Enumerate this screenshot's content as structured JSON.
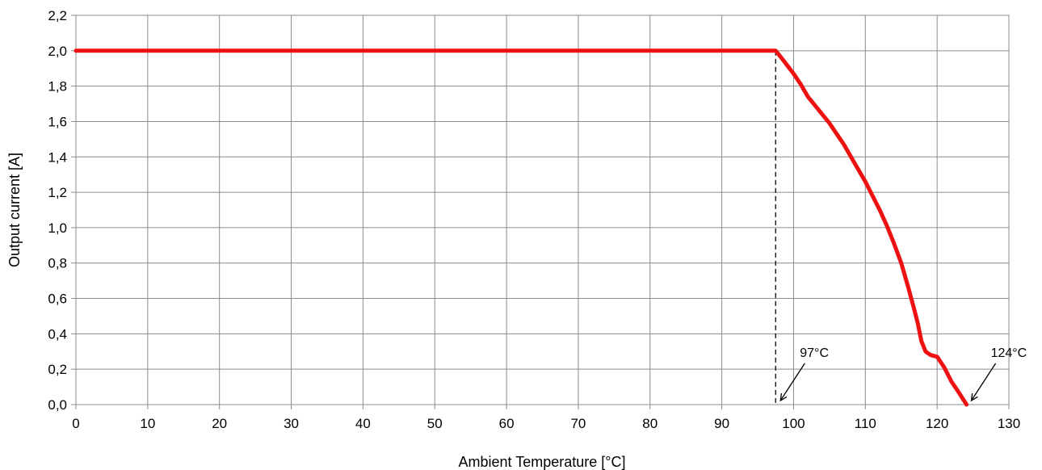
{
  "chart_data": {
    "type": "line",
    "xlabel": "Ambient Temperature  [°C]",
    "ylabel": "Output current [A]",
    "xlim": [
      0,
      130
    ],
    "ylim": [
      0,
      2.2
    ],
    "x_ticks": [
      0,
      10,
      20,
      30,
      40,
      50,
      60,
      70,
      80,
      90,
      100,
      110,
      120,
      130
    ],
    "y_ticks": [
      0,
      0.2,
      0.4,
      0.6,
      0.8,
      1.0,
      1.2,
      1.4,
      1.6,
      1.8,
      2.0,
      2.2
    ],
    "x_tick_labels": [
      "0",
      "10",
      "20",
      "30",
      "40",
      "50",
      "60",
      "70",
      "80",
      "90",
      "100",
      "110",
      "120",
      "130"
    ],
    "y_tick_labels": [
      "0,0",
      "0,2",
      "0,4",
      "0,6",
      "0,8",
      "1,0",
      "1,2",
      "1,4",
      "1,6",
      "1,8",
      "2,0",
      "2,2"
    ],
    "grid": true,
    "legend": "none",
    "series": [
      {
        "color": "#ee1111",
        "x": [
          0,
          97.5,
          98.5,
          100,
          101,
          102,
          103,
          104,
          105,
          106,
          107,
          108,
          109,
          110,
          111,
          112,
          113,
          114,
          115,
          116,
          116.8,
          117.3,
          117.8,
          118.4,
          119.1,
          120,
          121,
          122,
          123,
          124.1
        ],
        "y": [
          2.0,
          2.0,
          1.95,
          1.87,
          1.81,
          1.74,
          1.69,
          1.64,
          1.59,
          1.53,
          1.47,
          1.4,
          1.33,
          1.26,
          1.18,
          1.1,
          1.01,
          0.91,
          0.8,
          0.66,
          0.54,
          0.46,
          0.36,
          0.3,
          0.28,
          0.27,
          0.21,
          0.13,
          0.07,
          0.0
        ]
      }
    ],
    "annotations": [
      {
        "text": "97°C",
        "x": 97.5
      },
      {
        "text": "124°C",
        "x": 124.1
      }
    ]
  }
}
